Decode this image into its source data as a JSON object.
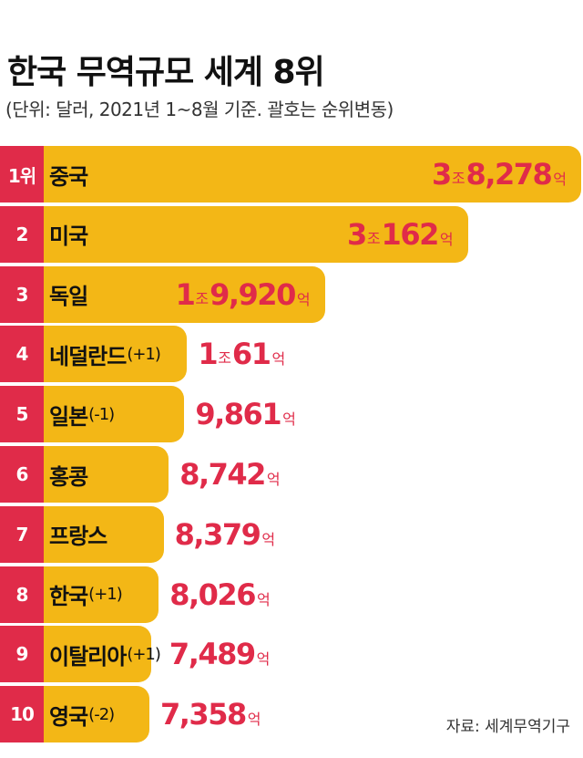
{
  "title": "한국 무역규모 세계 8위",
  "subtitle": "(단위: 달러, 2021년 1~8월 기준. 괄호는 순위변동)",
  "source": "자료: 세계무역기구",
  "colors": {
    "bar": "#f3b716",
    "rank_bg": "#e02b49",
    "value_text": "#e02b49"
  },
  "chart_data": {
    "type": "bar",
    "orientation": "horizontal",
    "title": "한국 무역규모 세계 8위",
    "unit": "억 달러",
    "categories": [
      "중국",
      "미국",
      "독일",
      "네덜란드",
      "일본",
      "홍콩",
      "프랑스",
      "한국",
      "이탈리아",
      "영국"
    ],
    "values": [
      38278,
      30162,
      19920,
      10061,
      9861,
      8742,
      8379,
      8026,
      7489,
      7358
    ],
    "rows": [
      {
        "rank": "1위",
        "country": "중국",
        "change": "",
        "value": 38278,
        "jo": "3",
        "eok": "8,278",
        "unit_jo": "조",
        "unit_eok": "억"
      },
      {
        "rank": "2",
        "country": "미국",
        "change": "",
        "value": 30162,
        "jo": "3",
        "eok": "162",
        "unit_jo": "조",
        "unit_eok": "억"
      },
      {
        "rank": "3",
        "country": "독일",
        "change": "",
        "value": 19920,
        "jo": "1",
        "eok": "9,920",
        "unit_jo": "조",
        "unit_eok": "억"
      },
      {
        "rank": "4",
        "country": "네덜란드",
        "change": "(+1)",
        "value": 10061,
        "jo": "1",
        "eok": "61",
        "unit_jo": "조",
        "unit_eok": "억"
      },
      {
        "rank": "5",
        "country": "일본",
        "change": "(-1)",
        "value": 9861,
        "jo": "",
        "eok": "9,861",
        "unit_jo": "",
        "unit_eok": "억"
      },
      {
        "rank": "6",
        "country": "홍콩",
        "change": "",
        "value": 8742,
        "jo": "",
        "eok": "8,742",
        "unit_jo": "",
        "unit_eok": "억"
      },
      {
        "rank": "7",
        "country": "프랑스",
        "change": "",
        "value": 8379,
        "jo": "",
        "eok": "8,379",
        "unit_jo": "",
        "unit_eok": "억"
      },
      {
        "rank": "8",
        "country": "한국",
        "change": "(+1)",
        "value": 8026,
        "jo": "",
        "eok": "8,026",
        "unit_jo": "",
        "unit_eok": "억"
      },
      {
        "rank": "9",
        "country": "이탈리아",
        "change": "(+1)",
        "value": 7489,
        "jo": "",
        "eok": "7,489",
        "unit_jo": "",
        "unit_eok": "억"
      },
      {
        "rank": "10",
        "country": "영국",
        "change": "(-2)",
        "value": 7358,
        "jo": "",
        "eok": "7,358",
        "unit_jo": "",
        "unit_eok": "억"
      }
    ]
  }
}
